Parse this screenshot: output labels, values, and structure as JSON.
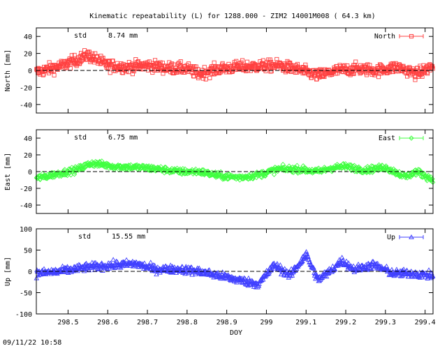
{
  "page": {
    "title": "Kinematic repeatability (L) for 1288.000 - ZIM2 14001M008  ( 64.3 km)",
    "timestamp": "09/11/22 10:58",
    "xlabel": "DOY"
  },
  "chart_data": [
    {
      "type": "scatter",
      "name": "North",
      "ylabel": "North [mm]",
      "std_label": "std",
      "std_value": "8.74 mm",
      "legend": "North",
      "legend_position": "top-right",
      "color": "#ff4040",
      "marker": "square-open",
      "xlim": [
        298.42,
        299.42
      ],
      "ylim": [
        -50,
        50
      ],
      "yticks": [
        40,
        20,
        0,
        -20,
        -40
      ],
      "ytick_labels": [
        "40",
        "20",
        "0",
        "-20",
        "-40"
      ],
      "x_knots": [
        298.42,
        298.48,
        298.52,
        298.55,
        298.6,
        298.65,
        298.7,
        298.75,
        298.8,
        298.83,
        298.88,
        298.93,
        298.98,
        299.03,
        299.08,
        299.13,
        299.18,
        299.23,
        299.28,
        299.33,
        299.38,
        299.42
      ],
      "y_knots": [
        -2,
        5,
        12,
        18,
        6,
        4,
        6,
        3,
        2,
        -4,
        2,
        4,
        5,
        6,
        1,
        -6,
        0,
        2,
        0,
        4,
        -4,
        5
      ],
      "noise": 8.74
    },
    {
      "type": "scatter",
      "name": "East",
      "ylabel": "East [mm]",
      "std_label": "std",
      "std_value": "6.75 mm",
      "legend": "East",
      "legend_position": "top-right",
      "color": "#40ff40",
      "marker": "diamond-open",
      "xlim": [
        298.42,
        299.42
      ],
      "ylim": [
        -50,
        50
      ],
      "yticks": [
        40,
        20,
        0,
        -20,
        -40
      ],
      "ytick_labels": [
        "40",
        "20",
        "0",
        "-20",
        "-40"
      ],
      "x_knots": [
        298.42,
        298.48,
        298.52,
        298.56,
        298.62,
        298.68,
        298.73,
        298.78,
        298.83,
        298.88,
        298.93,
        298.98,
        299.03,
        299.08,
        299.13,
        299.17,
        299.2,
        299.25,
        299.3,
        299.35,
        299.38,
        299.42
      ],
      "y_knots": [
        -8,
        -2,
        2,
        10,
        6,
        5,
        3,
        0,
        0,
        -5,
        -7,
        -4,
        3,
        3,
        0,
        5,
        6,
        2,
        5,
        -6,
        0,
        -10
      ],
      "noise": 5.0
    },
    {
      "type": "scatter",
      "name": "Up",
      "ylabel": "Up [mm]",
      "std_label": "std",
      "std_value": "15.55 mm",
      "legend": "Up",
      "legend_position": "top-right",
      "color": "#4040ff",
      "marker": "triangle-open",
      "xlim": [
        298.42,
        299.42
      ],
      "ylim": [
        -100,
        100
      ],
      "yticks": [
        100,
        50,
        0,
        -50,
        -100
      ],
      "ytick_labels": [
        "100",
        "50",
        "0",
        "-50",
        "-100"
      ],
      "x_knots": [
        298.42,
        298.48,
        298.55,
        298.62,
        298.67,
        298.72,
        298.78,
        298.83,
        298.88,
        298.93,
        298.98,
        299.02,
        299.06,
        299.1,
        299.13,
        299.16,
        299.19,
        299.22,
        299.27,
        299.32,
        299.37,
        299.42
      ],
      "y_knots": [
        -5,
        0,
        10,
        15,
        18,
        5,
        5,
        0,
        -10,
        -20,
        -30,
        15,
        -10,
        40,
        -20,
        0,
        25,
        5,
        15,
        -5,
        -5,
        -10
      ],
      "noise": 12.0
    }
  ],
  "xaxis": {
    "ticks": [
      298.5,
      298.6,
      298.7,
      298.8,
      298.9,
      299.0,
      299.1,
      299.2,
      299.3,
      299.4
    ],
    "tick_labels": [
      "298.5",
      "298.6",
      "298.7",
      "298.8",
      "298.9",
      "299",
      "299.1",
      "299.2",
      "299.3",
      "299.4"
    ]
  }
}
